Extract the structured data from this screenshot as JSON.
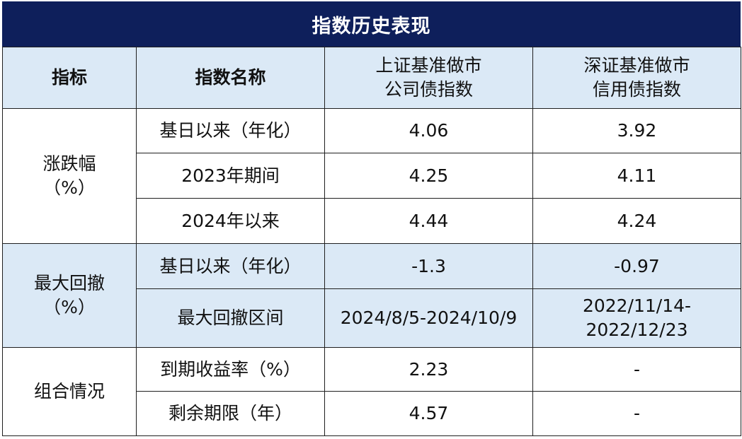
{
  "title": "指数历史表现",
  "header": {
    "col1": "指标",
    "col2": "指数名称",
    "col3_line1": "上证基准做市",
    "col3_line2": "公司债指数",
    "col4_line1": "深证基准做市",
    "col4_line2": "信用债指数"
  },
  "groups": [
    {
      "label_line1": "涨跌幅",
      "label_line2": "（%）",
      "rows": [
        {
          "name": "基日以来（年化）",
          "v1": "4.06",
          "v2": "3.92"
        },
        {
          "name": "2023年期间",
          "v1": "4.25",
          "v2": "4.11"
        },
        {
          "name": "2024年以来",
          "v1": "4.44",
          "v2": "4.24"
        }
      ]
    },
    {
      "label_line1": "最大回撤",
      "label_line2": "（%）",
      "rows": [
        {
          "name": "基日以来（年化）",
          "v1": "-1.3",
          "v2": "-0.97"
        },
        {
          "name": "最大回撤区间",
          "v1": "2024/8/5-2024/10/9",
          "v2_line1": "2022/11/14-",
          "v2_line2": "2022/12/23"
        }
      ]
    },
    {
      "label_line1": "组合情况",
      "rows": [
        {
          "name": "到期收益率（%）",
          "v1": "2.23",
          "v2": "-"
        },
        {
          "name": "剩余期限（年）",
          "v1": "4.57",
          "v2": "-"
        }
      ]
    }
  ],
  "colors": {
    "title_bg": "#0e1f5b",
    "header_bg": "#dbe9f6",
    "border": "#1f1f1f"
  }
}
